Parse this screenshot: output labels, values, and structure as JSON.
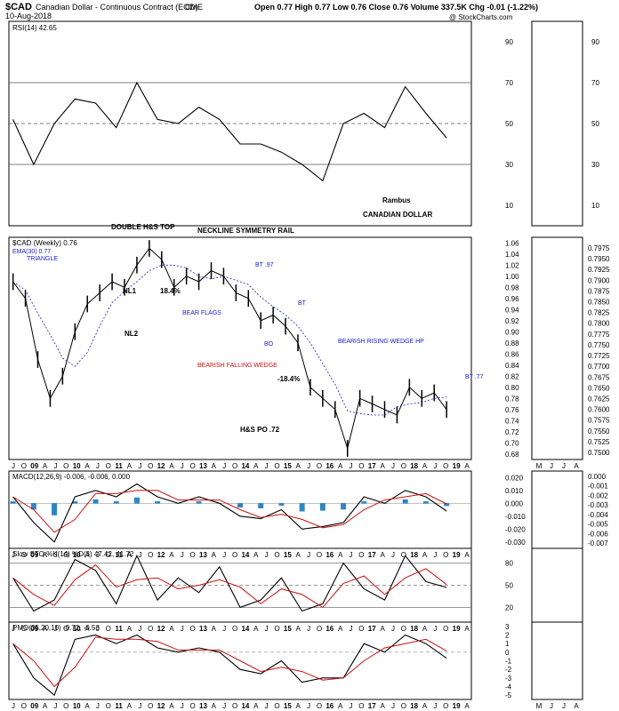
{
  "header": {
    "symbol": "$CAD",
    "title": "Canadian Dollar - Continuous Contract (EOD)",
    "exchange": "CME",
    "date": "10-Aug-2018",
    "quote": "Open 0.77  High 0.77  Low 0.76  Close 0.76  Volume 337.5K  Chg -0.01 (-1.22%)",
    "copyright": "@ StockCharts.com"
  },
  "colors": {
    "price_up": "#000000",
    "ema": "#1a1acc",
    "macd_hist": "#2e86c1",
    "rsi_fill": "#a05050",
    "signal": "#cc1111"
  },
  "chart_data": [
    {
      "type": "line",
      "panel": "rsi",
      "label": "RSI(14) 42.65",
      "ylim": [
        0,
        100
      ],
      "y_ticks": [
        10,
        30,
        50,
        70,
        90
      ],
      "guide_lines": [
        30,
        50,
        70
      ],
      "x": [
        2008.0,
        2008.5,
        2009.0,
        2009.5,
        2010.0,
        2010.5,
        2011.0,
        2011.5,
        2012.0,
        2012.5,
        2013.0,
        2013.5,
        2014.0,
        2014.5,
        2015.0,
        2015.5,
        2016.0,
        2016.5,
        2017.0,
        2017.5,
        2018.0,
        2018.5
      ],
      "values": [
        52,
        30,
        50,
        62,
        60,
        48,
        70,
        52,
        50,
        58,
        52,
        40,
        40,
        36,
        30,
        22,
        50,
        55,
        48,
        68,
        55,
        43
      ]
    },
    {
      "type": "line",
      "panel": "price",
      "label": "$CAD (Weekly) 0.76",
      "ema_label": "EMA(30) 0.77",
      "ylim": [
        0.67,
        1.07
      ],
      "y_ticks": [
        0.68,
        0.7,
        0.72,
        0.74,
        0.76,
        0.78,
        0.8,
        0.82,
        0.84,
        0.86,
        0.88,
        0.9,
        0.92,
        0.94,
        0.96,
        0.98,
        1.0,
        1.02,
        1.04,
        1.06
      ],
      "x": [
        2008.0,
        2008.3,
        2008.6,
        2008.9,
        2009.2,
        2009.5,
        2009.8,
        2010.1,
        2010.4,
        2010.7,
        2011.0,
        2011.3,
        2011.6,
        2011.9,
        2012.2,
        2012.5,
        2012.8,
        2013.1,
        2013.4,
        2013.7,
        2014.0,
        2014.3,
        2014.6,
        2014.9,
        2015.2,
        2015.5,
        2015.8,
        2016.1,
        2016.4,
        2016.7,
        2017.0,
        2017.3,
        2017.6,
        2017.9,
        2018.2,
        2018.5
      ],
      "values": [
        0.99,
        0.96,
        0.85,
        0.78,
        0.82,
        0.9,
        0.95,
        0.97,
        0.99,
        0.98,
        1.02,
        1.05,
        1.03,
        0.98,
        1.0,
        0.99,
        1.01,
        1.0,
        0.97,
        0.96,
        0.92,
        0.93,
        0.91,
        0.88,
        0.8,
        0.78,
        0.76,
        0.69,
        0.78,
        0.77,
        0.76,
        0.75,
        0.8,
        0.78,
        0.79,
        0.76
      ],
      "annotations": [
        "DOUBLE H&S TOP",
        "NECKLINE SYMMETRY RAIL",
        "NL1",
        "NL2",
        "18.4%",
        "-18.4%",
        "BEAR FLAGS",
        "BEARISH FALLING WEDGE",
        "BEARISH RISING WEDGE HP",
        "H&S PO .72",
        "BT .97",
        "BT .77",
        "BT",
        "BO",
        "TRIANGLE"
      ]
    },
    {
      "type": "line",
      "panel": "macd",
      "label": "MACD(12,26,9) -0.006, -0.006, 0.000",
      "ylim": [
        -0.035,
        0.025
      ],
      "y_ticks": [
        0.02,
        0.01,
        0.0,
        -0.01,
        -0.02,
        -0.03
      ],
      "x": [
        2008.0,
        2008.5,
        2009.0,
        2009.5,
        2010.0,
        2010.5,
        2011.0,
        2011.5,
        2012.0,
        2012.5,
        2013.0,
        2013.5,
        2014.0,
        2014.5,
        2015.0,
        2015.5,
        2016.0,
        2016.5,
        2017.0,
        2017.5,
        2018.0,
        2018.5
      ],
      "values": [
        0.005,
        -0.015,
        -0.03,
        0.005,
        0.01,
        0.005,
        0.015,
        0.005,
        0.0,
        0.005,
        0.0,
        -0.01,
        -0.012,
        -0.005,
        -0.02,
        -0.018,
        -0.015,
        0.005,
        0.0,
        0.01,
        0.005,
        -0.006
      ]
    },
    {
      "type": "line",
      "panel": "slowsto",
      "label": "Slow STO %K(14) %D(3) 47.42, 41.72",
      "ylim": [
        0,
        100
      ],
      "y_ticks": [
        20,
        50,
        80
      ],
      "x": [
        2008.0,
        2008.5,
        2009.0,
        2009.5,
        2010.0,
        2010.5,
        2011.0,
        2011.5,
        2012.0,
        2012.5,
        2013.0,
        2013.5,
        2014.0,
        2014.5,
        2015.0,
        2015.5,
        2016.0,
        2016.5,
        2017.0,
        2017.5,
        2018.0,
        2018.5
      ],
      "values": [
        60,
        15,
        30,
        85,
        70,
        25,
        90,
        30,
        60,
        40,
        75,
        20,
        30,
        60,
        15,
        25,
        80,
        45,
        30,
        90,
        55,
        47
      ]
    },
    {
      "type": "line",
      "panel": "pmo",
      "label": "PMO(35,20,10) -0.72, -0.56",
      "ylim": [
        -5.5,
        3.5
      ],
      "y_ticks": [
        3,
        2,
        1,
        0,
        -1,
        -2,
        -3,
        -4,
        -5
      ],
      "x": [
        2008.0,
        2008.5,
        2009.0,
        2009.5,
        2010.0,
        2010.5,
        2011.0,
        2011.5,
        2012.0,
        2012.5,
        2013.0,
        2013.5,
        2014.0,
        2014.5,
        2015.0,
        2015.5,
        2016.0,
        2016.5,
        2017.0,
        2017.5,
        2018.0,
        2018.5
      ],
      "values": [
        1.0,
        -3.0,
        -5.0,
        1.5,
        2.0,
        1.0,
        2.0,
        0.5,
        0.0,
        0.5,
        0.0,
        -2.0,
        -2.5,
        -1.0,
        -3.5,
        -3.0,
        -3.0,
        1.0,
        0.0,
        2.0,
        1.0,
        -0.7
      ]
    }
  ],
  "x_axis_labels": [
    "J",
    "O",
    "09",
    "A",
    "J",
    "O",
    "10",
    "A",
    "J",
    "O",
    "11",
    "A",
    "J",
    "O",
    "12",
    "A",
    "J",
    "O",
    "13",
    "A",
    "J",
    "O",
    "14",
    "A",
    "J",
    "O",
    "15",
    "A",
    "J",
    "O",
    "16",
    "A",
    "J",
    "O",
    "17",
    "A",
    "J",
    "O",
    "18",
    "A",
    "J",
    "O",
    "19",
    "A"
  ],
  "side_x_labels": [
    "M",
    "J",
    "J",
    "A"
  ],
  "side_price_ticks": [
    "0.7975",
    "0.7950",
    "0.7925",
    "0.7900",
    "0.7875",
    "0.7850",
    "0.7825",
    "0.7800",
    "0.7775",
    "0.7750",
    "0.7725",
    "0.7700",
    "0.7675",
    "0.7650",
    "0.7625",
    "0.7600",
    "0.7575",
    "0.7550",
    "0.7525",
    "0.7500"
  ],
  "side_macd_ticks": [
    "0.000",
    "-0.001",
    "-0.002",
    "-0.003",
    "-0.004",
    "-0.005",
    "-0.006",
    "-0.007"
  ],
  "rsi_notes": {
    "author": "Rambus",
    "subject": "CANADIAN DOLLAR"
  }
}
